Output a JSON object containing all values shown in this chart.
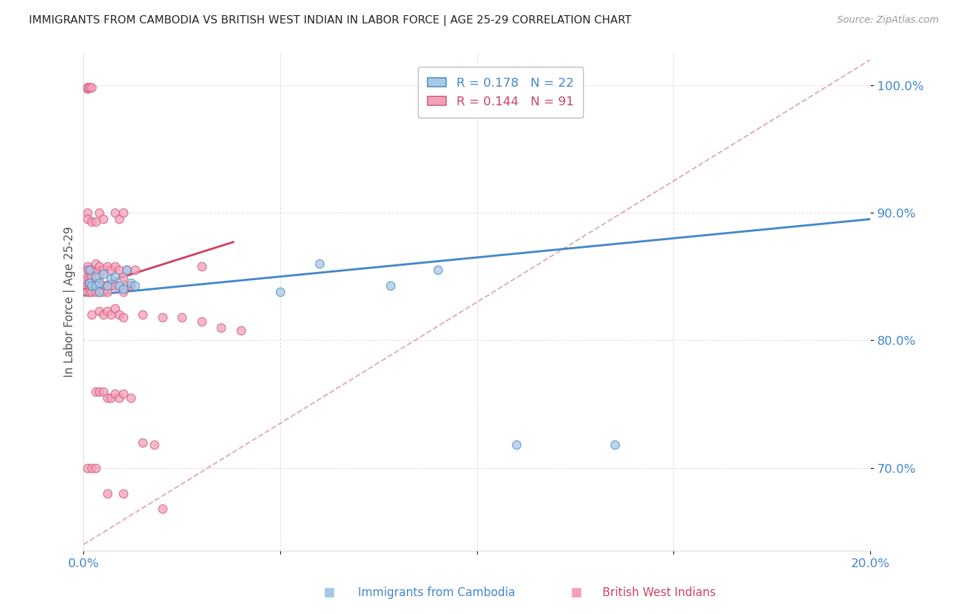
{
  "title": "IMMIGRANTS FROM CAMBODIA VS BRITISH WEST INDIAN IN LABOR FORCE | AGE 25-29 CORRELATION CHART",
  "source": "Source: ZipAtlas.com",
  "ylabel": "In Labor Force | Age 25-29",
  "xlim": [
    0.0,
    0.2
  ],
  "ylim": [
    0.635,
    1.025
  ],
  "yticks": [
    0.7,
    0.8,
    0.9,
    1.0
  ],
  "ytick_labels": [
    "70.0%",
    "80.0%",
    "90.0%",
    "100.0%"
  ],
  "xticks": [
    0.0,
    0.05,
    0.1,
    0.15,
    0.2
  ],
  "xtick_labels": [
    "0.0%",
    "",
    "",
    "",
    "20.0%"
  ],
  "cambodia_color": "#A8C8E8",
  "cambodia_edge": "#5090C0",
  "bwi_color": "#F4A0B8",
  "bwi_edge": "#D06080",
  "cambodia_line_color": "#4488CC",
  "bwi_line_color": "#CC4466",
  "ref_line_color": "#D8A0B0",
  "axis_color": "#4488CC",
  "bwi_axis_color": "#CC4466",
  "grid_color": "#CCCCCC",
  "title_fontsize": 11.5,
  "tick_fontsize": 13,
  "ylabel_fontsize": 12,
  "legend_fontsize": 13,
  "marker_size": 80,
  "line_width": 2.2,
  "cam_line_x0": 0.0,
  "cam_line_y0": 0.835,
  "cam_line_x1": 0.2,
  "cam_line_y1": 0.895,
  "bwi_line_x0": 0.0,
  "bwi_line_y0": 0.84,
  "bwi_line_x1": 0.038,
  "bwi_line_y1": 0.877,
  "ref_line_x0": 0.0,
  "ref_line_y0": 0.64,
  "ref_line_x1": 0.2,
  "ref_line_y1": 1.02,
  "cam_scatter_x": [
    0.0015,
    0.0015,
    0.002,
    0.003,
    0.003,
    0.004,
    0.004,
    0.005,
    0.006,
    0.007,
    0.008,
    0.009,
    0.01,
    0.011,
    0.012,
    0.013,
    0.05,
    0.06,
    0.078,
    0.09,
    0.11,
    0.135
  ],
  "cam_scatter_y": [
    0.855,
    0.845,
    0.843,
    0.85,
    0.843,
    0.845,
    0.838,
    0.852,
    0.843,
    0.848,
    0.85,
    0.843,
    0.84,
    0.855,
    0.845,
    0.843,
    0.838,
    0.86,
    0.843,
    0.855,
    0.718,
    0.718
  ],
  "bwi_scatter_x": [
    0.001,
    0.001,
    0.001,
    0.001,
    0.001,
    0.001,
    0.001,
    0.001,
    0.001,
    0.001,
    0.0015,
    0.0015,
    0.0015,
    0.0015,
    0.0015,
    0.0015,
    0.0015,
    0.002,
    0.002,
    0.002,
    0.002,
    0.002,
    0.002,
    0.003,
    0.003,
    0.003,
    0.003,
    0.003,
    0.004,
    0.004,
    0.004,
    0.004,
    0.005,
    0.005,
    0.005,
    0.006,
    0.006,
    0.006,
    0.007,
    0.007,
    0.008,
    0.008,
    0.009,
    0.009,
    0.01,
    0.01,
    0.011,
    0.011,
    0.012,
    0.013,
    0.001,
    0.001,
    0.002,
    0.003,
    0.004,
    0.005,
    0.008,
    0.009,
    0.01,
    0.03,
    0.002,
    0.004,
    0.005,
    0.006,
    0.007,
    0.008,
    0.009,
    0.01,
    0.015,
    0.02,
    0.025,
    0.03,
    0.035,
    0.04,
    0.003,
    0.004,
    0.005,
    0.006,
    0.007,
    0.008,
    0.009,
    0.01,
    0.012,
    0.015,
    0.018,
    0.001,
    0.002,
    0.003,
    0.006,
    0.01,
    0.02
  ],
  "bwi_scatter_y": [
    0.998,
    0.997,
    0.998,
    0.998,
    0.858,
    0.845,
    0.855,
    0.843,
    0.838,
    0.85,
    0.998,
    0.998,
    0.855,
    0.843,
    0.85,
    0.838,
    0.845,
    0.998,
    0.855,
    0.843,
    0.85,
    0.838,
    0.845,
    0.855,
    0.843,
    0.86,
    0.838,
    0.845,
    0.858,
    0.843,
    0.85,
    0.838,
    0.855,
    0.843,
    0.838,
    0.858,
    0.843,
    0.838,
    0.855,
    0.843,
    0.858,
    0.843,
    0.855,
    0.843,
    0.85,
    0.838,
    0.855,
    0.843,
    0.843,
    0.855,
    0.9,
    0.895,
    0.893,
    0.893,
    0.9,
    0.895,
    0.9,
    0.895,
    0.9,
    0.858,
    0.82,
    0.823,
    0.82,
    0.823,
    0.82,
    0.825,
    0.82,
    0.818,
    0.82,
    0.818,
    0.818,
    0.815,
    0.81,
    0.808,
    0.76,
    0.76,
    0.76,
    0.755,
    0.755,
    0.758,
    0.755,
    0.758,
    0.755,
    0.72,
    0.718,
    0.7,
    0.7,
    0.7,
    0.68,
    0.68,
    0.668
  ]
}
